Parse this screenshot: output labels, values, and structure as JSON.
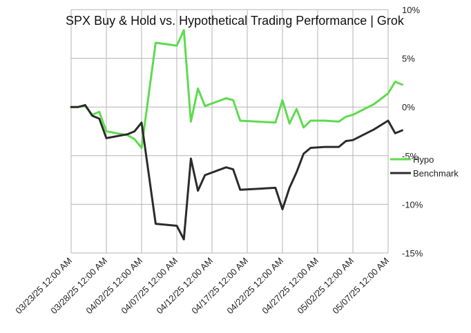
{
  "chart_data": {
    "type": "line",
    "title": "SPX Buy & Hold vs. Hypothetical Trading Performance | Grok",
    "xlabel": "",
    "ylabel": "",
    "x_tick_labels": [
      "03/23/25 12:00 AM",
      "03/28/25 12:00 AM",
      "04/02/25 12:00 AM",
      "04/07/25 12:00 AM",
      "04/12/25 12:00 AM",
      "04/17/25 12:00 AM",
      "04/22/25 12:00 AM",
      "04/27/25 12:00 AM",
      "05/02/25 12:00 AM",
      "05/07/25 12:00 AM"
    ],
    "y_tick_labels": [
      "10%",
      "5%",
      "0%",
      "-5%",
      "-10%",
      "-15%"
    ],
    "y_tick_values": [
      10,
      5,
      0,
      -5,
      -10,
      -15
    ],
    "xlim": [
      "2025-03-23",
      "2025-05-08"
    ],
    "ylim": [
      -15,
      10
    ],
    "grid": true,
    "legend_position": "right",
    "series": [
      {
        "name": "Hypo",
        "color": "#5ddb4e",
        "points": [
          [
            "2025-03-23",
            0.0
          ],
          [
            "2025-03-24",
            0.0
          ],
          [
            "2025-03-25",
            0.1
          ],
          [
            "2025-03-26",
            -0.8
          ],
          [
            "2025-03-27",
            -0.5
          ],
          [
            "2025-03-28",
            -2.5
          ],
          [
            "2025-03-31",
            -2.9
          ],
          [
            "2025-04-01",
            -3.3
          ],
          [
            "2025-04-02",
            -4.2
          ],
          [
            "2025-04-04",
            6.6
          ],
          [
            "2025-04-07",
            6.3
          ],
          [
            "2025-04-08",
            7.9
          ],
          [
            "2025-04-09",
            -1.5
          ],
          [
            "2025-04-10",
            1.9
          ],
          [
            "2025-04-11",
            0.1
          ],
          [
            "2025-04-14",
            0.9
          ],
          [
            "2025-04-15",
            0.7
          ],
          [
            "2025-04-16",
            -1.4
          ],
          [
            "2025-04-21",
            -1.6
          ],
          [
            "2025-04-22",
            0.7
          ],
          [
            "2025-04-23",
            -1.7
          ],
          [
            "2025-04-24",
            -0.2
          ],
          [
            "2025-04-25",
            -2.1
          ],
          [
            "2025-04-26",
            -1.4
          ],
          [
            "2025-04-28",
            -1.4
          ],
          [
            "2025-04-30",
            -1.5
          ],
          [
            "2025-05-01",
            -1.0
          ],
          [
            "2025-05-02",
            -0.8
          ],
          [
            "2025-05-05",
            0.3
          ],
          [
            "2025-05-07",
            1.4
          ],
          [
            "2025-05-08",
            2.6
          ],
          [
            "2025-05-09",
            2.3
          ]
        ]
      },
      {
        "name": "Benchmark",
        "color": "#2b2b2b",
        "points": [
          [
            "2025-03-23",
            0.0
          ],
          [
            "2025-03-24",
            0.0
          ],
          [
            "2025-03-25",
            0.2
          ],
          [
            "2025-03-26",
            -0.9
          ],
          [
            "2025-03-27",
            -1.2
          ],
          [
            "2025-03-28",
            -3.2
          ],
          [
            "2025-03-31",
            -2.8
          ],
          [
            "2025-04-01",
            -2.5
          ],
          [
            "2025-04-02",
            -1.6
          ],
          [
            "2025-04-04",
            -12.0
          ],
          [
            "2025-04-07",
            -12.2
          ],
          [
            "2025-04-08",
            -13.6
          ],
          [
            "2025-04-09",
            -5.3
          ],
          [
            "2025-04-10",
            -8.6
          ],
          [
            "2025-04-11",
            -7.0
          ],
          [
            "2025-04-14",
            -6.2
          ],
          [
            "2025-04-15",
            -6.4
          ],
          [
            "2025-04-16",
            -8.5
          ],
          [
            "2025-04-21",
            -8.3
          ],
          [
            "2025-04-22",
            -10.5
          ],
          [
            "2025-04-23",
            -8.3
          ],
          [
            "2025-04-24",
            -6.7
          ],
          [
            "2025-04-25",
            -4.8
          ],
          [
            "2025-04-26",
            -4.2
          ],
          [
            "2025-04-28",
            -4.1
          ],
          [
            "2025-04-30",
            -4.1
          ],
          [
            "2025-05-01",
            -3.5
          ],
          [
            "2025-05-02",
            -3.4
          ],
          [
            "2025-05-05",
            -2.3
          ],
          [
            "2025-05-07",
            -1.4
          ],
          [
            "2025-05-08",
            -2.7
          ],
          [
            "2025-05-09",
            -2.4
          ]
        ]
      }
    ]
  }
}
